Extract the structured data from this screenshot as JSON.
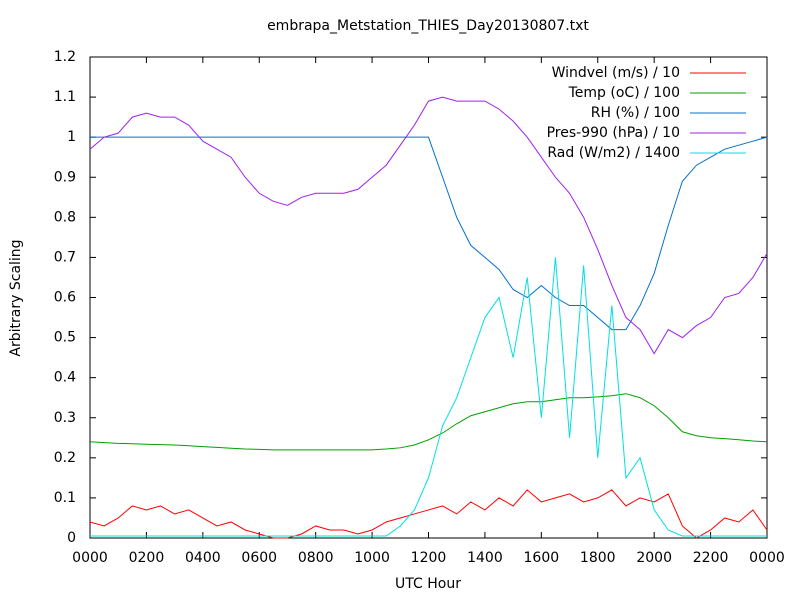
{
  "chart_data": {
    "type": "line",
    "title": "embrapa_Metstation_THIES_Day20130807.txt",
    "x_label": "UTC Hour",
    "y_label": "Arbitrary Scaling",
    "x": [
      0,
      0.5,
      1,
      1.5,
      2,
      2.5,
      3,
      3.5,
      4,
      4.5,
      5,
      5.5,
      6,
      6.5,
      7,
      7.5,
      8,
      8.5,
      9,
      9.5,
      10,
      10.5,
      11,
      11.5,
      12,
      12.5,
      13,
      13.5,
      14,
      14.5,
      15,
      15.5,
      16,
      16.5,
      17,
      17.5,
      18,
      18.5,
      19,
      19.5,
      20,
      20.5,
      21,
      21.5,
      22,
      22.5,
      23,
      23.5,
      24
    ],
    "series": [
      {
        "name": "Windvel (m/s) / 10",
        "color": "#ff0000",
        "values": [
          0.04,
          0.03,
          0.05,
          0.08,
          0.07,
          0.08,
          0.06,
          0.07,
          0.05,
          0.03,
          0.04,
          0.02,
          0.01,
          0.0,
          0.0,
          0.01,
          0.03,
          0.02,
          0.02,
          0.01,
          0.02,
          0.04,
          0.05,
          0.06,
          0.07,
          0.08,
          0.06,
          0.09,
          0.07,
          0.1,
          0.08,
          0.12,
          0.09,
          0.1,
          0.11,
          0.09,
          0.1,
          0.12,
          0.08,
          0.1,
          0.09,
          0.11,
          0.03,
          0.0,
          0.02,
          0.05,
          0.04,
          0.07,
          0.02
        ]
      },
      {
        "name": "Temp (oC) / 100",
        "color": "#00a000",
        "values": [
          0.24,
          0.238,
          0.236,
          0.235,
          0.234,
          0.233,
          0.232,
          0.23,
          0.228,
          0.226,
          0.224,
          0.222,
          0.221,
          0.22,
          0.22,
          0.22,
          0.22,
          0.22,
          0.22,
          0.22,
          0.22,
          0.222,
          0.225,
          0.232,
          0.245,
          0.262,
          0.285,
          0.305,
          0.315,
          0.325,
          0.335,
          0.34,
          0.34,
          0.345,
          0.35,
          0.35,
          0.352,
          0.355,
          0.36,
          0.35,
          0.33,
          0.3,
          0.265,
          0.255,
          0.25,
          0.248,
          0.245,
          0.242,
          0.24
        ]
      },
      {
        "name": "RH (%) / 100",
        "color": "#0070d0",
        "values": [
          1,
          1,
          1,
          1,
          1,
          1,
          1,
          1,
          1,
          1,
          1,
          1,
          1,
          1,
          1,
          1,
          1,
          1,
          1,
          1,
          1,
          1,
          1,
          1,
          1,
          0.9,
          0.8,
          0.73,
          0.7,
          0.67,
          0.62,
          0.6,
          0.63,
          0.6,
          0.58,
          0.58,
          0.55,
          0.52,
          0.52,
          0.58,
          0.66,
          0.78,
          0.89,
          0.93,
          0.95,
          0.97,
          0.98,
          0.99,
          1
        ]
      },
      {
        "name": "Pres-990 (hPa) / 10",
        "color": "#a020f0",
        "values": [
          0.97,
          1.0,
          1.01,
          1.05,
          1.06,
          1.05,
          1.05,
          1.03,
          0.99,
          0.97,
          0.95,
          0.9,
          0.86,
          0.84,
          0.83,
          0.85,
          0.86,
          0.86,
          0.86,
          0.87,
          0.9,
          0.93,
          0.98,
          1.03,
          1.09,
          1.1,
          1.09,
          1.09,
          1.09,
          1.07,
          1.04,
          1.0,
          0.95,
          0.9,
          0.86,
          0.8,
          0.72,
          0.63,
          0.55,
          0.52,
          0.46,
          0.52,
          0.5,
          0.53,
          0.55,
          0.6,
          0.61,
          0.65,
          0.71
        ]
      },
      {
        "name": "Rad (W/m2) / 1400",
        "color": "#00e0e0",
        "values": [
          0.005,
          0.005,
          0.005,
          0.005,
          0.005,
          0.005,
          0.005,
          0.005,
          0.005,
          0.005,
          0.005,
          0.005,
          0.005,
          0.005,
          0.005,
          0.005,
          0.005,
          0.005,
          0.005,
          0.005,
          0.005,
          0.005,
          0.03,
          0.07,
          0.15,
          0.28,
          0.35,
          0.45,
          0.55,
          0.6,
          0.45,
          0.65,
          0.3,
          0.7,
          0.25,
          0.68,
          0.2,
          0.58,
          0.15,
          0.2,
          0.07,
          0.02,
          0.005,
          0.005,
          0.005,
          0.005,
          0.005,
          0.005,
          0.005
        ]
      }
    ],
    "xlim": [
      0,
      24
    ],
    "xticks": [
      {
        "value": 0,
        "label": "0000"
      },
      {
        "value": 2,
        "label": "0200"
      },
      {
        "value": 4,
        "label": "0400"
      },
      {
        "value": 6,
        "label": "0600"
      },
      {
        "value": 8,
        "label": "0800"
      },
      {
        "value": 10,
        "label": "1000"
      },
      {
        "value": 12,
        "label": "1200"
      },
      {
        "value": 14,
        "label": "1400"
      },
      {
        "value": 16,
        "label": "1600"
      },
      {
        "value": 18,
        "label": "1800"
      },
      {
        "value": 20,
        "label": "2000"
      },
      {
        "value": 22,
        "label": "2200"
      },
      {
        "value": 24,
        "label": "0000"
      }
    ],
    "ylim": [
      0,
      1.2
    ],
    "yticks": [
      0,
      0.1,
      0.2,
      0.3,
      0.4,
      0.5,
      0.6,
      0.7,
      0.8,
      0.9,
      1,
      1.1,
      1.2
    ],
    "legend": "top-right"
  }
}
